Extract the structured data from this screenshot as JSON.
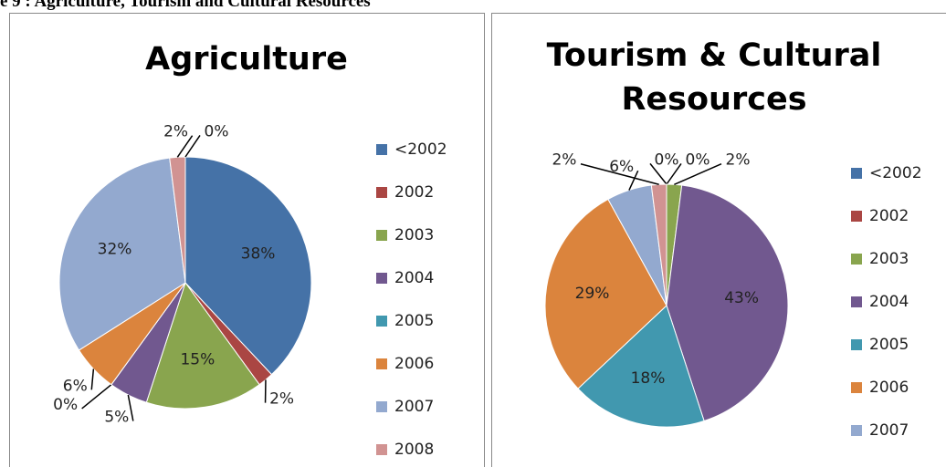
{
  "caption": "e 9 : Agriculture, Tourism and Cultural Resources",
  "chart_data": [
    {
      "type": "pie",
      "title": "Agriculture",
      "categories": [
        "<2002",
        "2002",
        "2003",
        "2004",
        "2005",
        "2006",
        "2007",
        "2008",
        null
      ],
      "values": [
        38,
        2,
        15,
        5,
        0,
        6,
        32,
        2,
        0
      ],
      "value_labels": [
        "38%",
        "2%",
        "15%",
        "5%",
        "0%",
        "6%",
        "32%",
        "2%",
        "0%"
      ],
      "colors": [
        "#4572A7",
        "#AA4643",
        "#89A54E",
        "#71588F",
        "#4198AF",
        "#DB843D",
        "#93A9CF",
        "#D19392",
        "#B9CD96"
      ]
    },
    {
      "type": "pie",
      "title": [
        "Tourism & Cultural",
        "Resources"
      ],
      "categories": [
        "<2002",
        "2002",
        "2003",
        "2004",
        "2005",
        "2006",
        "2007",
        null
      ],
      "values": [
        0,
        0,
        2,
        43,
        18,
        29,
        6,
        2
      ],
      "value_labels": [
        "0%",
        "0%",
        "2%",
        "43%",
        "18%",
        "29%",
        "6%",
        "2%"
      ],
      "colors": [
        "#4572A7",
        "#AA4643",
        "#89A54E",
        "#71588F",
        "#4198AF",
        "#DB843D",
        "#93A9CF",
        "#D19392"
      ]
    }
  ]
}
